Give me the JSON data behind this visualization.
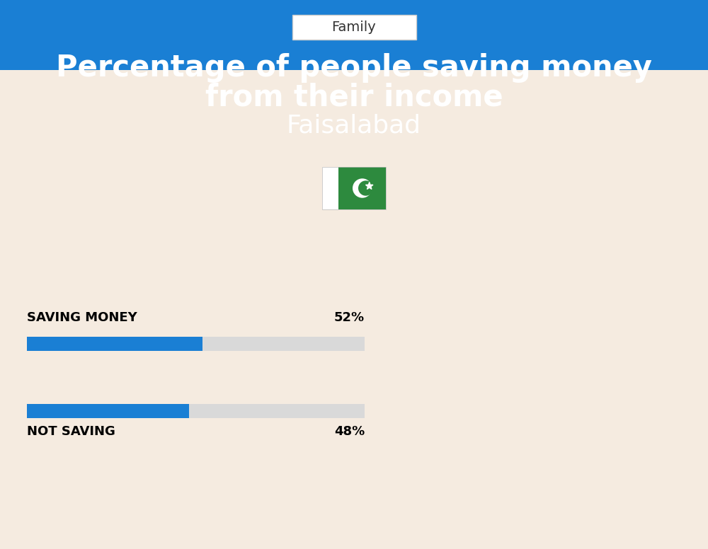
{
  "bg_color": "#f5ebe0",
  "blue_color": "#1a7fd4",
  "bar_blue": "#1a7fd4",
  "bar_gray": "#d9d9d9",
  "title_line1": "Percentage of people saving money",
  "title_line2": "from their income",
  "subtitle": "Faisalabad",
  "category_label": "Family",
  "saving_label": "SAVING MONEY",
  "not_saving_label": "NOT SAVING",
  "saving_value": 52,
  "not_saving_value": 48,
  "saving_pct": "52%",
  "not_saving_pct": "48%",
  "bar_total": 100,
  "title_color": "#ffffff",
  "subtitle_color": "#ffffff",
  "label_color": "#000000",
  "pct_color": "#000000",
  "category_color": "#333333",
  "flag_white": "#ffffff",
  "flag_green": "#2d8a3e"
}
